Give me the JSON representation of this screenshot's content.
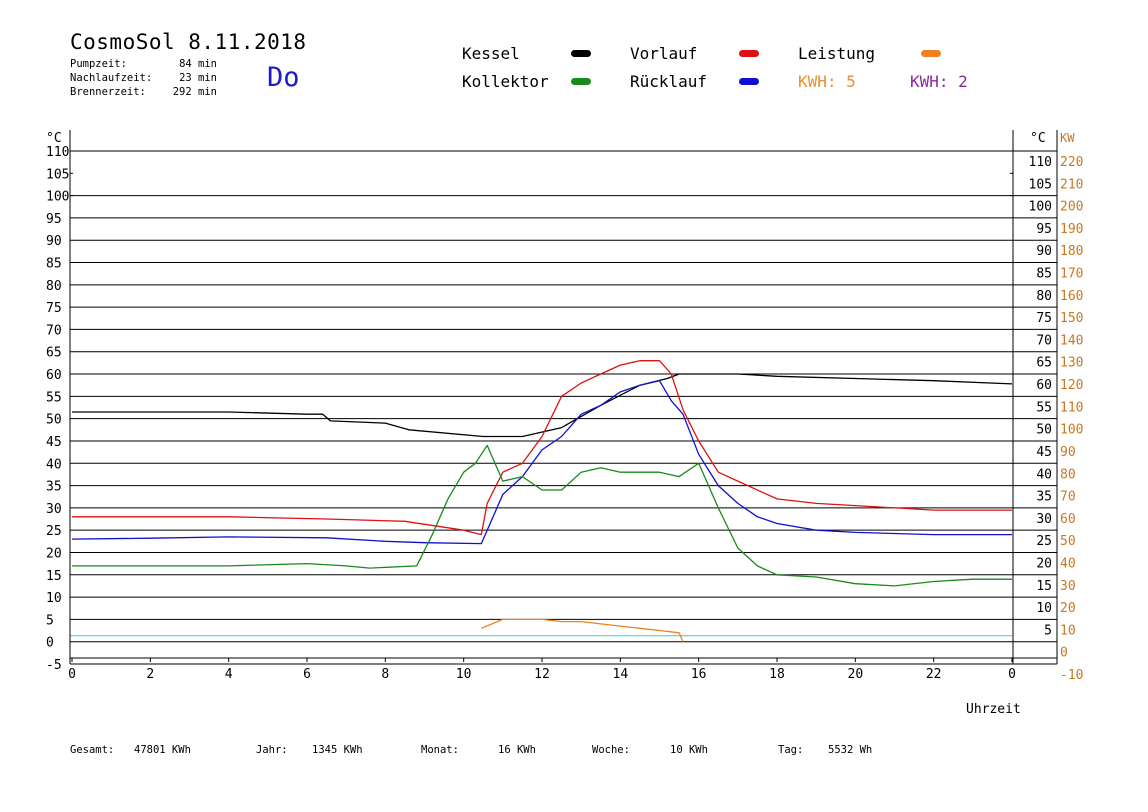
{
  "header": {
    "title": "CosmoSol 8.11.2018",
    "weekday": "Do",
    "stats": [
      {
        "label": "Pumpzeit:",
        "value": "84 min"
      },
      {
        "label": "Nachlaufzeit:",
        "value": "23 min"
      },
      {
        "label": "Brennerzeit:",
        "value": "292 min"
      }
    ]
  },
  "legend": {
    "items": [
      {
        "label": "Kessel",
        "color": "#000000"
      },
      {
        "label": "Vorlauf",
        "color": "#e01010"
      },
      {
        "label": "Leistung",
        "color": "#f08020"
      },
      {
        "label": "Kollektor",
        "color": "#1a8a1a"
      },
      {
        "label": "Rücklauf",
        "color": "#1010d0"
      }
    ],
    "kwh1": {
      "text": "KWH: 5",
      "color": "#e89030"
    },
    "kwh2": {
      "text": "KWH: 2",
      "color": "#8a2aa0"
    }
  },
  "footer": {
    "items": [
      {
        "label": "Gesamt:",
        "value": "47801 KWh"
      },
      {
        "label": "Jahr:",
        "value": "1345 KWh"
      },
      {
        "label": "Monat:",
        "value": "16 KWh"
      },
      {
        "label": "Woche:",
        "value": "10 KWh"
      },
      {
        "label": "Tag:",
        "value": "5532 Wh"
      }
    ]
  },
  "chart_data": {
    "type": "line",
    "xlabel": "Uhrzeit",
    "ylabel_left": "°C",
    "ylabel_right": "°C",
    "ylabel_right2": "KW",
    "xlim": [
      0,
      24
    ],
    "ylim": [
      -5,
      110
    ],
    "y2lim": [
      -10,
      220
    ],
    "x_ticks": [
      "0",
      "2",
      "4",
      "6",
      "8",
      "10",
      "12",
      "14",
      "16",
      "18",
      "20",
      "22",
      "0"
    ],
    "y_ticks_left": [
      -5,
      0,
      5,
      10,
      15,
      20,
      25,
      30,
      35,
      40,
      45,
      50,
      55,
      60,
      65,
      70,
      75,
      80,
      85,
      90,
      95,
      100,
      105,
      110
    ],
    "y_ticks_right": [
      5,
      10,
      15,
      20,
      25,
      30,
      35,
      40,
      45,
      50,
      55,
      60,
      65,
      70,
      75,
      80,
      85,
      90,
      95,
      100,
      105,
      110
    ],
    "y2_ticks": [
      -10,
      0,
      10,
      20,
      30,
      40,
      50,
      60,
      70,
      80,
      90,
      100,
      110,
      120,
      130,
      140,
      150,
      160,
      170,
      180,
      190,
      200,
      210,
      220
    ],
    "grid": true,
    "series": [
      {
        "name": "Kessel",
        "color": "#000000",
        "x": [
          0,
          2,
          4,
          6,
          6.4,
          6.6,
          8,
          8.6,
          10.5,
          11.5,
          12.5,
          13.5,
          14.5,
          15.2,
          15.5,
          15.8,
          17,
          18,
          20,
          22,
          24
        ],
        "y": [
          51.5,
          51.5,
          51.5,
          51,
          51,
          49.5,
          49,
          47.5,
          46,
          46,
          48,
          53,
          57.5,
          59,
          60,
          60,
          60,
          59.5,
          59,
          58.5,
          57.8
        ]
      },
      {
        "name": "Vorlauf",
        "color": "#e01010",
        "x": [
          0,
          4,
          6.5,
          8.5,
          10,
          10.45,
          10.6,
          11,
          11.5,
          12,
          12.5,
          13,
          13.5,
          14,
          14.5,
          15,
          15.3,
          15.6,
          16,
          16.5,
          17,
          18,
          19,
          20,
          22,
          24
        ],
        "y": [
          28,
          28,
          27.5,
          27,
          25,
          24,
          31,
          38,
          40,
          46,
          55,
          58,
          60,
          62,
          63,
          63,
          60,
          52,
          45,
          38,
          36,
          32,
          31,
          30.5,
          29.5,
          29.5
        ]
      },
      {
        "name": "Rücklauf",
        "color": "#1010d0",
        "x": [
          0,
          2,
          4,
          6.5,
          8,
          9,
          10.45,
          10.6,
          11,
          11.5,
          12,
          12.5,
          13,
          13.5,
          14,
          14.5,
          15,
          15.3,
          15.6,
          16,
          16.5,
          17,
          17.5,
          18,
          19,
          20,
          22,
          24
        ],
        "y": [
          23,
          23.2,
          23.5,
          23.3,
          22.5,
          22.2,
          22,
          25,
          33,
          37,
          43,
          46,
          51,
          53,
          56,
          57.5,
          58.5,
          54,
          51,
          42,
          35,
          31,
          28,
          26.5,
          25,
          24.5,
          24,
          24
        ]
      },
      {
        "name": "Kollektor",
        "color": "#1a8a1a",
        "x": [
          0,
          2,
          4,
          6,
          7,
          7.6,
          8.8,
          9.2,
          9.6,
          10,
          10.3,
          10.45,
          10.6,
          11,
          11.5,
          12,
          12.5,
          13,
          13.5,
          14,
          14.5,
          15,
          15.5,
          16,
          16.5,
          17,
          17.5,
          18,
          19,
          20,
          21,
          22,
          23,
          24
        ],
        "y": [
          17,
          17,
          17,
          17.5,
          17,
          16.5,
          17,
          24,
          32,
          38,
          40,
          42,
          44,
          36,
          37,
          34,
          34,
          38,
          39,
          38,
          38,
          38,
          37,
          40,
          30,
          21,
          17,
          15,
          14.5,
          13,
          12.5,
          13.5,
          14,
          14
        ]
      },
      {
        "name": "Leistung",
        "color": "#f08020",
        "x": [
          10.45,
          11,
          11.5,
          12,
          12.5,
          13,
          13.5,
          14,
          14.5,
          15,
          15.5,
          15.6
        ],
        "y": [
          3,
          5,
          5,
          5,
          4.5,
          4.5,
          4,
          3.5,
          3,
          2.5,
          2,
          0
        ]
      }
    ]
  }
}
